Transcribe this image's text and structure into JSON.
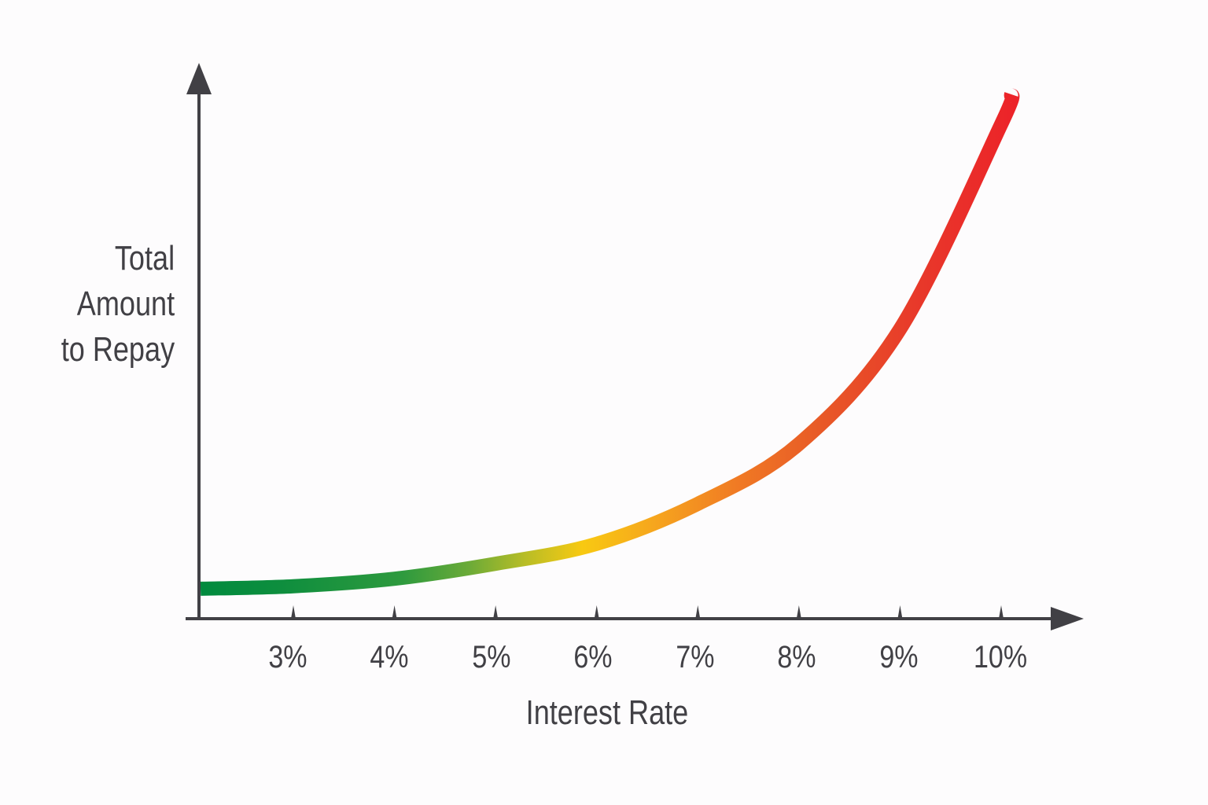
{
  "chart_data": {
    "type": "line",
    "title": "",
    "xlabel": "Interest Rate",
    "ylabel": "Total Amount to Repay",
    "ylabel_lines": [
      "Total",
      "Amount",
      "to Repay"
    ],
    "x_tick_labels": [
      "3%",
      "4%",
      "5%",
      "6%",
      "7%",
      "8%",
      "9%",
      "10%"
    ],
    "x": [
      2,
      3,
      4,
      5,
      6,
      7,
      8,
      9,
      10,
      10.1
    ],
    "series": [
      {
        "name": "Total Amount to Repay",
        "values": [
          6,
          6.5,
          8,
          11,
          15,
          23,
          35,
          58,
          99,
          105
        ],
        "note": "conceptual exponential curve; y-axis has no numeric ticks, values are relative estimates on a 0-105 scale"
      }
    ],
    "y_ticks": [],
    "xlim": [
      2,
      10.8
    ],
    "ylim": [
      0,
      110
    ],
    "grid": false,
    "legend": null,
    "line_gradient": [
      "#008a3e",
      "#5aa83c",
      "#f7c817",
      "#f39220",
      "#e8542a",
      "#ec2329"
    ]
  },
  "axis": {
    "color": "#414045"
  }
}
